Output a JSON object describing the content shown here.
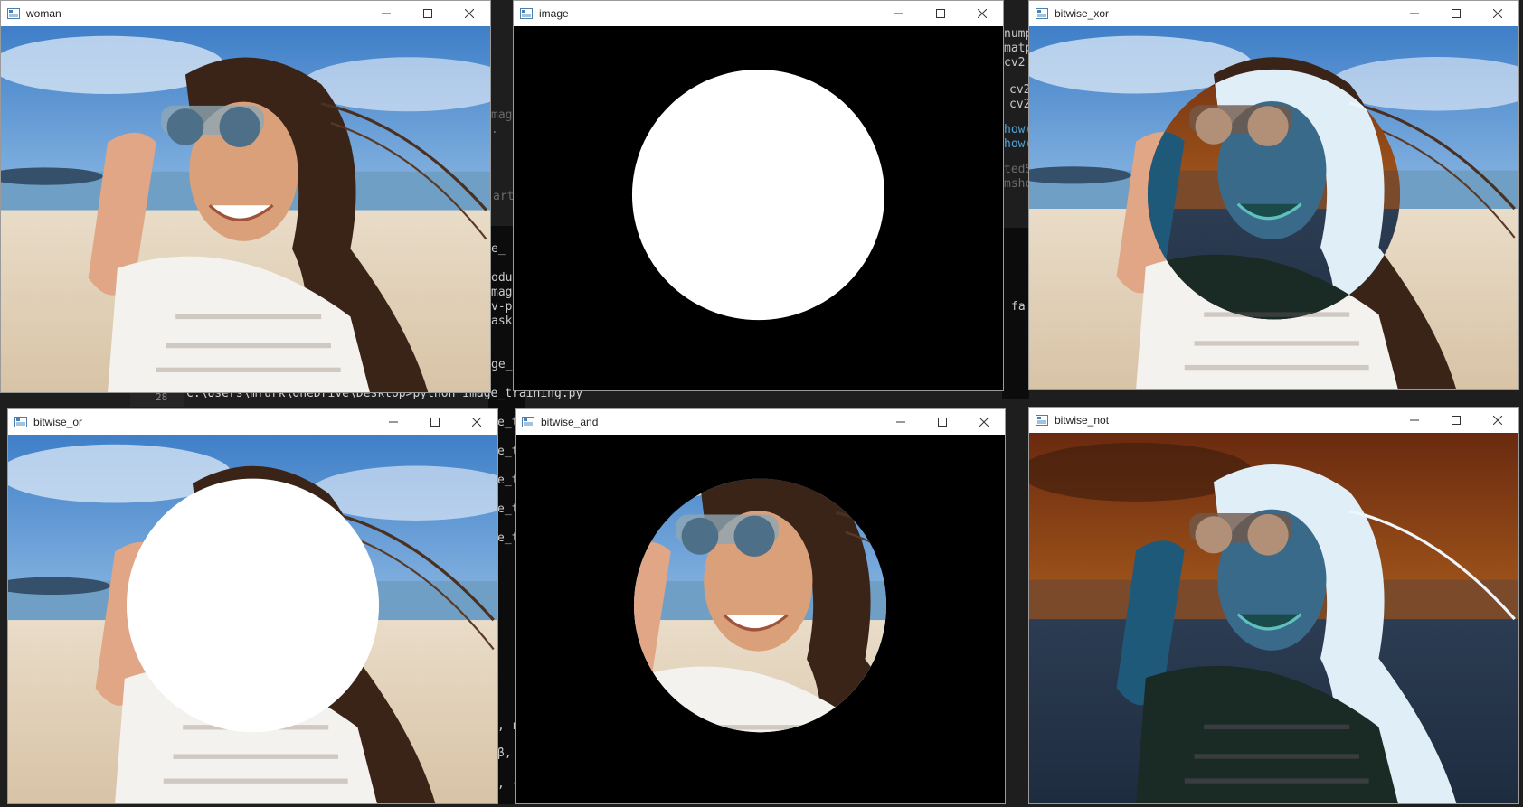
{
  "windows": {
    "woman": {
      "title": "woman"
    },
    "image": {
      "title": "image"
    },
    "bitwise_xor": {
      "title": "bitwise_xor"
    },
    "bitwise_or": {
      "title": "bitwise_or"
    },
    "bitwise_and": {
      "title": "bitwise_and"
    },
    "bitwise_not": {
      "title": "bitwise_not"
    }
  },
  "window_controls": {
    "minimize_icon": "minimize-icon",
    "maximize_icon": "maximize-icon",
    "close_icon": "close-icon"
  },
  "editor": {
    "fragments": [
      "mage",
      ".",
      "art",
      "e_",
      "odu",
      "mag",
      "v-p",
      "ask",
      "ge_",
      "e_t",
      "e_t",
      "e_t",
      "e_t",
      "e_t",
      ", r",
      "β,",
      ", ·"
    ],
    "right_fragments": [
      "nump",
      "matp",
      "cv2",
      "cv2",
      "cv2",
      "how(",
      "how(",
      "tedS",
      "msho",
      "fa"
    ],
    "line_number": "28",
    "terminal_line": "C:\\Users\\mfurk\\OneDrive\\Desktop>python image_training.py"
  },
  "colors": {
    "titlebar": "#ffffff",
    "canvas_black": "#000000",
    "editor_bg": "#1e1e1e"
  }
}
